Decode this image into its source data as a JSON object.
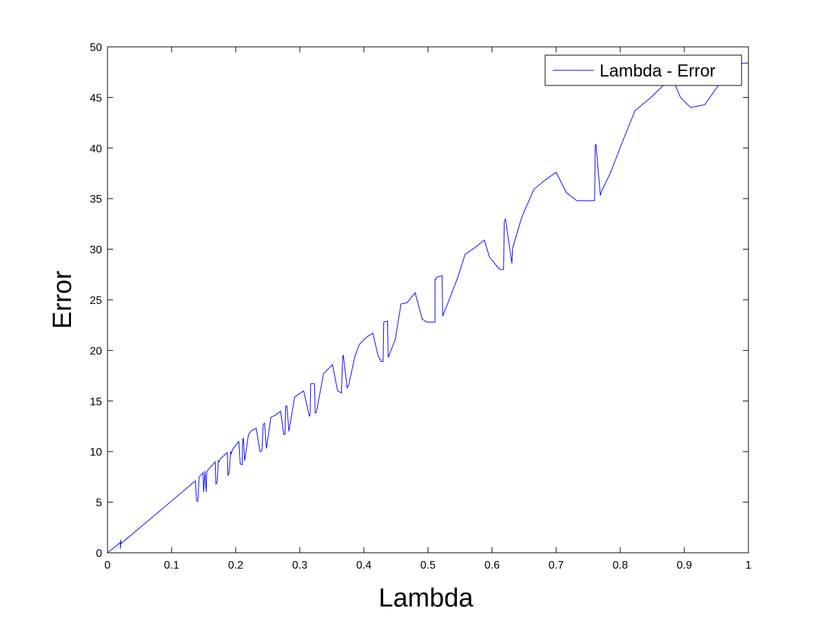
{
  "chart_data": {
    "type": "line",
    "title": "",
    "xlabel": "Lambda",
    "ylabel": "Error",
    "xlim": [
      0,
      1
    ],
    "ylim": [
      0,
      50
    ],
    "x_ticks": [
      0,
      0.1,
      0.2,
      0.3,
      0.4,
      0.5,
      0.6,
      0.7,
      0.8,
      0.9,
      1
    ],
    "x_tick_labels": [
      "0",
      "0.1",
      "0.2",
      "0.3",
      "0.4",
      "0.5",
      "0.6",
      "0.7",
      "0.8",
      "0.9",
      "1"
    ],
    "y_ticks": [
      0,
      5,
      10,
      15,
      20,
      25,
      30,
      35,
      40,
      45,
      50
    ],
    "y_tick_labels": [
      "0",
      "5",
      "10",
      "15",
      "20",
      "25",
      "30",
      "35",
      "40",
      "45",
      "50"
    ],
    "grid": false,
    "legend": {
      "position": "top-right",
      "entries": [
        "Lambda - Error"
      ]
    },
    "series": [
      {
        "name": "Lambda - Error",
        "color": "#0000ff",
        "x": [
          0,
          0.02,
          0.02,
          0.021,
          0.021,
          0.137,
          0.139,
          0.141,
          0.143,
          0.149,
          0.15,
          0.152,
          0.154,
          0.155,
          0.157,
          0.168,
          0.169,
          0.171,
          0.173,
          0.174,
          0.176,
          0.187,
          0.188,
          0.19,
          0.192,
          0.193,
          0.195,
          0.205,
          0.207,
          0.21,
          0.211,
          0.212,
          0.214,
          0.22,
          0.225,
          0.232,
          0.238,
          0.241,
          0.243,
          0.245,
          0.248,
          0.255,
          0.262,
          0.27,
          0.275,
          0.277,
          0.278,
          0.28,
          0.283,
          0.292,
          0.306,
          0.315,
          0.316,
          0.317,
          0.323,
          0.324,
          0.326,
          0.337,
          0.351,
          0.359,
          0.365,
          0.367,
          0.368,
          0.374,
          0.376,
          0.386,
          0.393,
          0.404,
          0.414,
          0.422,
          0.427,
          0.43,
          0.431,
          0.437,
          0.438,
          0.449,
          0.458,
          0.467,
          0.48,
          0.491,
          0.498,
          0.511,
          0.511,
          0.512,
          0.513,
          0.522,
          0.523,
          0.535,
          0.547,
          0.558,
          0.572,
          0.588,
          0.596,
          0.612,
          0.618,
          0.619,
          0.621,
          0.631,
          0.632,
          0.646,
          0.665,
          0.682,
          0.7,
          0.716,
          0.732,
          0.748,
          0.76,
          0.761,
          0.762,
          0.769,
          0.77,
          0.785,
          0.804,
          0.823,
          0.846,
          0.869,
          0.884,
          0.894,
          0.91,
          0.932,
          0.951,
          0.976,
          1.0
        ],
        "y": [
          0,
          1.0,
          0.4,
          1.3,
          0.9,
          7.1,
          5.1,
          5.1,
          7.5,
          7.9,
          6.0,
          8.1,
          6.0,
          8.0,
          8.2,
          9.0,
          6.8,
          6.9,
          9.1,
          9.0,
          9.3,
          9.9,
          7.6,
          8.0,
          10.0,
          9.8,
          10.2,
          11.0,
          8.8,
          8.7,
          11.2,
          11.3,
          9.1,
          11.7,
          12.1,
          12.3,
          10.0,
          10.1,
          12.7,
          12.8,
          10.3,
          13.4,
          13.6,
          14.0,
          11.7,
          11.7,
          14.5,
          14.5,
          12.0,
          15.4,
          16.0,
          13.5,
          13.6,
          16.7,
          16.7,
          13.8,
          13.9,
          17.7,
          18.6,
          16.0,
          15.8,
          19.4,
          19.5,
          16.3,
          16.5,
          19.4,
          20.6,
          21.3,
          21.7,
          19.5,
          18.9,
          18.9,
          22.8,
          22.9,
          19.3,
          21.1,
          24.6,
          24.7,
          25.7,
          23.1,
          22.8,
          22.8,
          27.0,
          27.0,
          27.2,
          27.4,
          23.4,
          25.3,
          27.3,
          29.5,
          30.1,
          30.9,
          29.2,
          28.0,
          28.0,
          32.7,
          33.0,
          28.6,
          30.1,
          33.1,
          35.9,
          36.8,
          37.6,
          35.6,
          34.8,
          34.8,
          34.8,
          40.1,
          40.4,
          35.3,
          35.6,
          37.6,
          40.7,
          43.7,
          44.9,
          46.3,
          46.5,
          45.0,
          44.0,
          44.3,
          46.0,
          48.3,
          48.4
        ]
      }
    ]
  }
}
